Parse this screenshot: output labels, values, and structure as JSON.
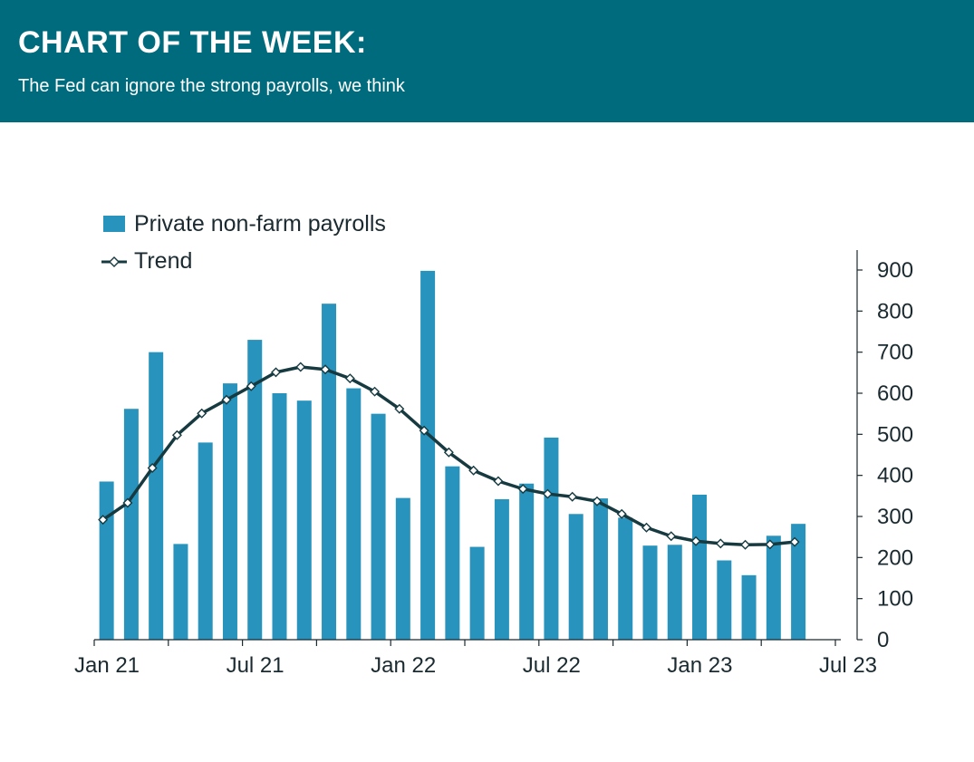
{
  "header": {
    "title": "CHART OF THE WEEK:",
    "subtitle": "The Fed can ignore the strong payrolls, we think"
  },
  "chart_data": {
    "type": "bar",
    "x_ticks": [
      "Jan 21",
      "Jul 21",
      "Jan 22",
      "Jul 22",
      "Jan 23",
      "Jul 23"
    ],
    "y_ticks": [
      0,
      100,
      200,
      300,
      400,
      500,
      600,
      700,
      800,
      900
    ],
    "ylim": [
      0,
      900
    ],
    "y_axis_side": "right",
    "legend_position": "top-left",
    "grid": false,
    "x": [
      "2021-01",
      "2021-02",
      "2021-03",
      "2021-04",
      "2021-05",
      "2021-06",
      "2021-07",
      "2021-08",
      "2021-09",
      "2021-10",
      "2021-11",
      "2021-12",
      "2022-01",
      "2022-02",
      "2022-03",
      "2022-04",
      "2022-05",
      "2022-06",
      "2022-07",
      "2022-08",
      "2022-09",
      "2022-10",
      "2022-11",
      "2022-12",
      "2023-01",
      "2023-02",
      "2023-03",
      "2023-04",
      "2023-05",
      "2023-06",
      "2023-07"
    ],
    "series": [
      {
        "name": "Private non-farm payrolls",
        "kind": "bar",
        "color": "#2894bd",
        "values": [
          385,
          562,
          700,
          233,
          480,
          624,
          730,
          600,
          582,
          818,
          612,
          550,
          345,
          898,
          422,
          226,
          342,
          380,
          492,
          306,
          344,
          297,
          229,
          231,
          353,
          193,
          157,
          253,
          282,
          null,
          null
        ]
      },
      {
        "name": "Trend",
        "kind": "line",
        "color": "#163a40",
        "marker": "diamond",
        "values": [
          292,
          333,
          418,
          498,
          551,
          584,
          617,
          651,
          664,
          658,
          636,
          604,
          562,
          509,
          456,
          412,
          386,
          367,
          355,
          348,
          337,
          306,
          273,
          252,
          240,
          234,
          231,
          232,
          238,
          null,
          null
        ]
      }
    ]
  }
}
